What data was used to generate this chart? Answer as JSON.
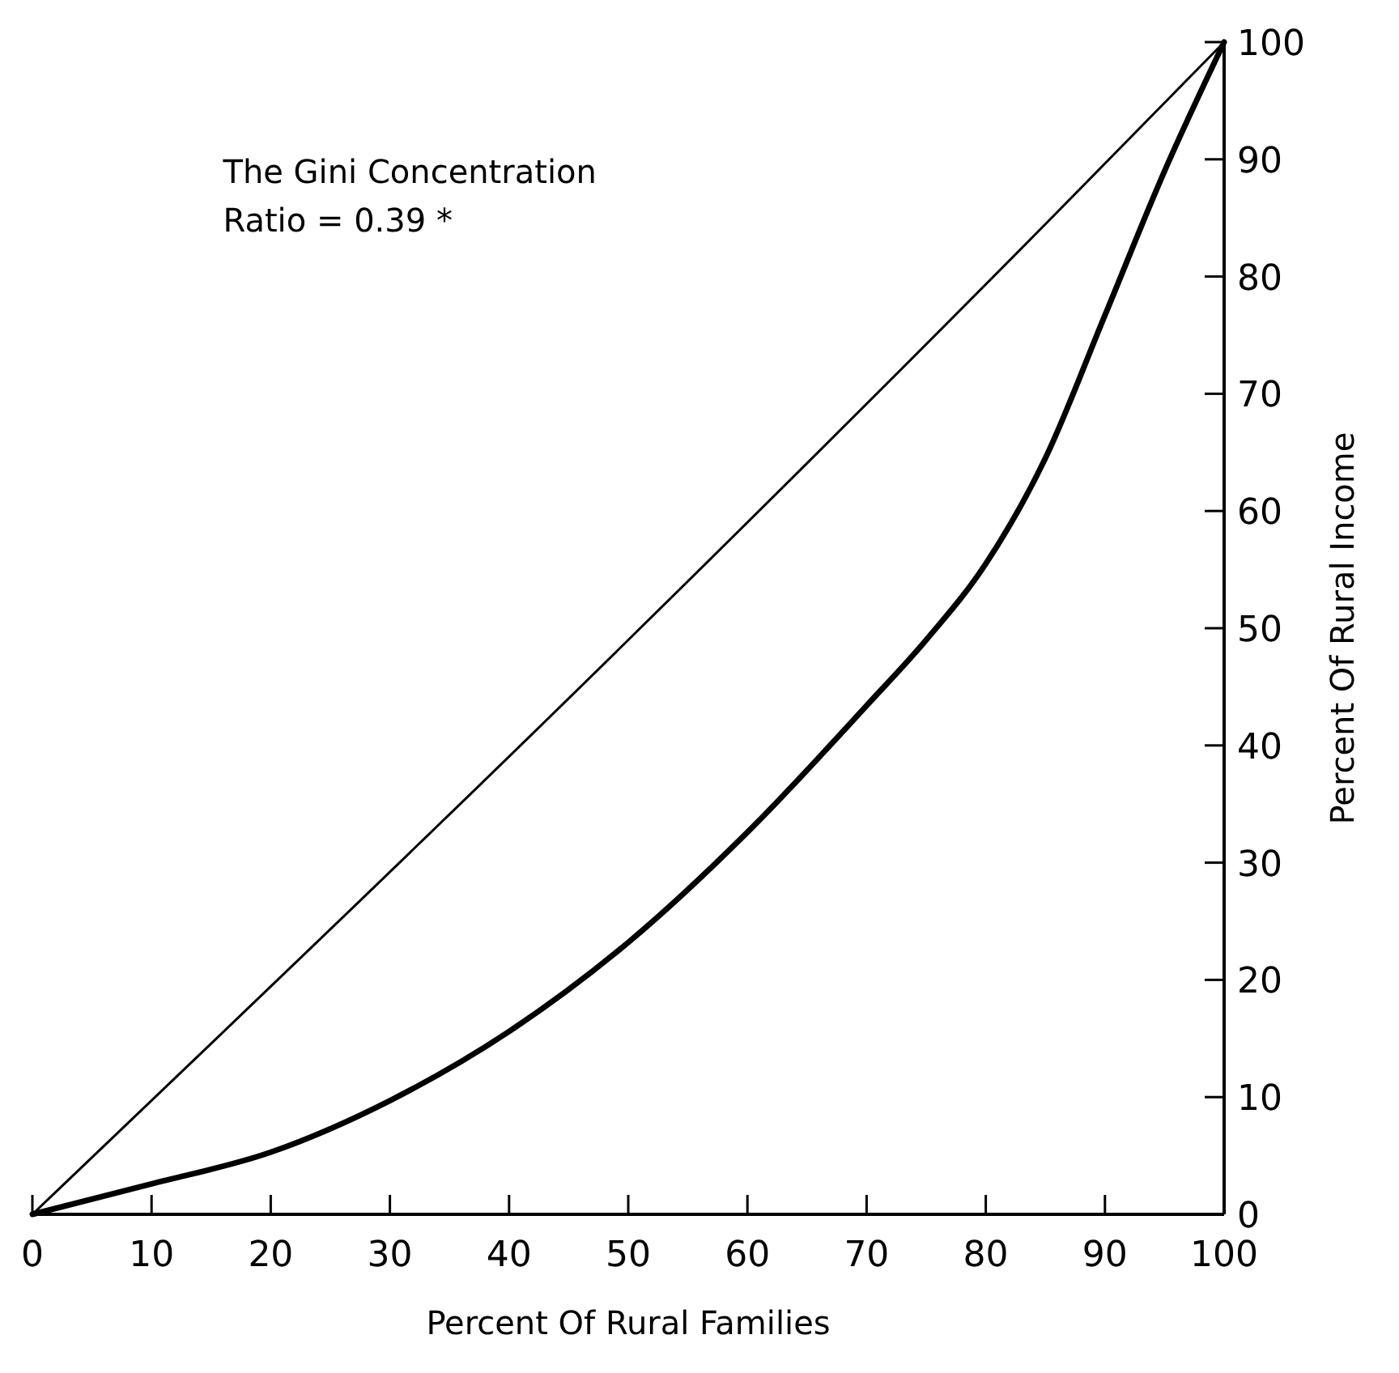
{
  "chart_data": {
    "type": "line",
    "xlabel": "Percent Of Rural Families",
    "ylabel": "Percent Of Rural Income",
    "annotations": [
      "The Gini Concentration\nRatio = 0.39 *"
    ],
    "xlim": [
      0,
      100
    ],
    "ylim": [
      0,
      100
    ],
    "xticks": [
      0,
      10,
      20,
      30,
      40,
      50,
      60,
      70,
      80,
      90,
      100
    ],
    "yticks": [
      0,
      10,
      20,
      30,
      40,
      50,
      60,
      70,
      80,
      90,
      100
    ],
    "marker": "none",
    "line_style": "solid",
    "series": [
      {
        "color": "#000000",
        "x": [
          0,
          50,
          86,
          100
        ],
        "values": [
          0,
          49,
          85.5,
          100
        ]
      },
      {
        "color": "#000000",
        "x": [
          0,
          10,
          20,
          30,
          40,
          50,
          60,
          70,
          75,
          80,
          85,
          90,
          95,
          100
        ],
        "values": [
          0,
          2.6,
          5.3,
          9.7,
          15.6,
          23.2,
          32.6,
          43.4,
          49,
          55.5,
          64.5,
          76.7,
          89,
          100
        ]
      }
    ]
  }
}
